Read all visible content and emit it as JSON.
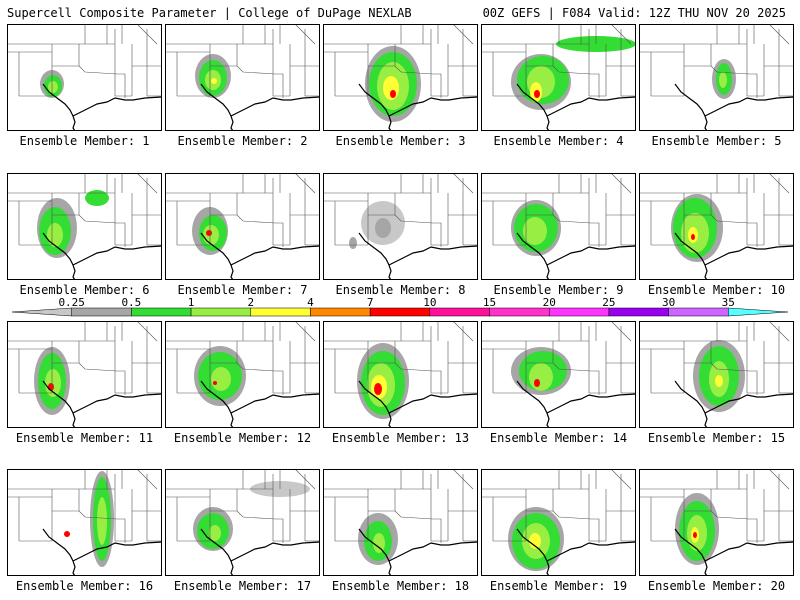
{
  "header": {
    "left": "Supercell Composite Parameter | College of DuPage NEXLAB",
    "right": "00Z GEFS | F084 Valid: 12Z THU NOV 20 2025"
  },
  "legend": {
    "labels": [
      "0.25",
      "0.5",
      "1",
      "2",
      "4",
      "7",
      "10",
      "15",
      "20",
      "25",
      "30",
      "35"
    ],
    "colors": [
      "#c8c8c8",
      "#a6a6a6",
      "#33dd33",
      "#99ee44",
      "#ffff33",
      "#ff8800",
      "#ff0000",
      "#ff1199",
      "#ff33cc",
      "#ff33ff",
      "#9900ee",
      "#cc66ff",
      "#55ffff"
    ]
  },
  "members": [
    {
      "caption": "Ensemble Member: 1"
    },
    {
      "caption": "Ensemble Member: 2"
    },
    {
      "caption": "Ensemble Member: 3"
    },
    {
      "caption": "Ensemble Member: 4"
    },
    {
      "caption": "Ensemble Member: 5"
    },
    {
      "caption": "Ensemble Member: 6"
    },
    {
      "caption": "Ensemble Member: 7"
    },
    {
      "caption": "Ensemble Member: 8"
    },
    {
      "caption": "Ensemble Member: 9"
    },
    {
      "caption": "Ensemble Member: 10"
    },
    {
      "caption": "Ensemble Member: 11"
    },
    {
      "caption": "Ensemble Member: 12"
    },
    {
      "caption": "Ensemble Member: 13"
    },
    {
      "caption": "Ensemble Member: 14"
    },
    {
      "caption": "Ensemble Member: 15"
    },
    {
      "caption": "Ensemble Member: 16"
    },
    {
      "caption": "Ensemble Member: 17"
    },
    {
      "caption": "Ensemble Member: 18"
    },
    {
      "caption": "Ensemble Member: 19"
    },
    {
      "caption": "Ensemble Member: 20"
    }
  ]
}
